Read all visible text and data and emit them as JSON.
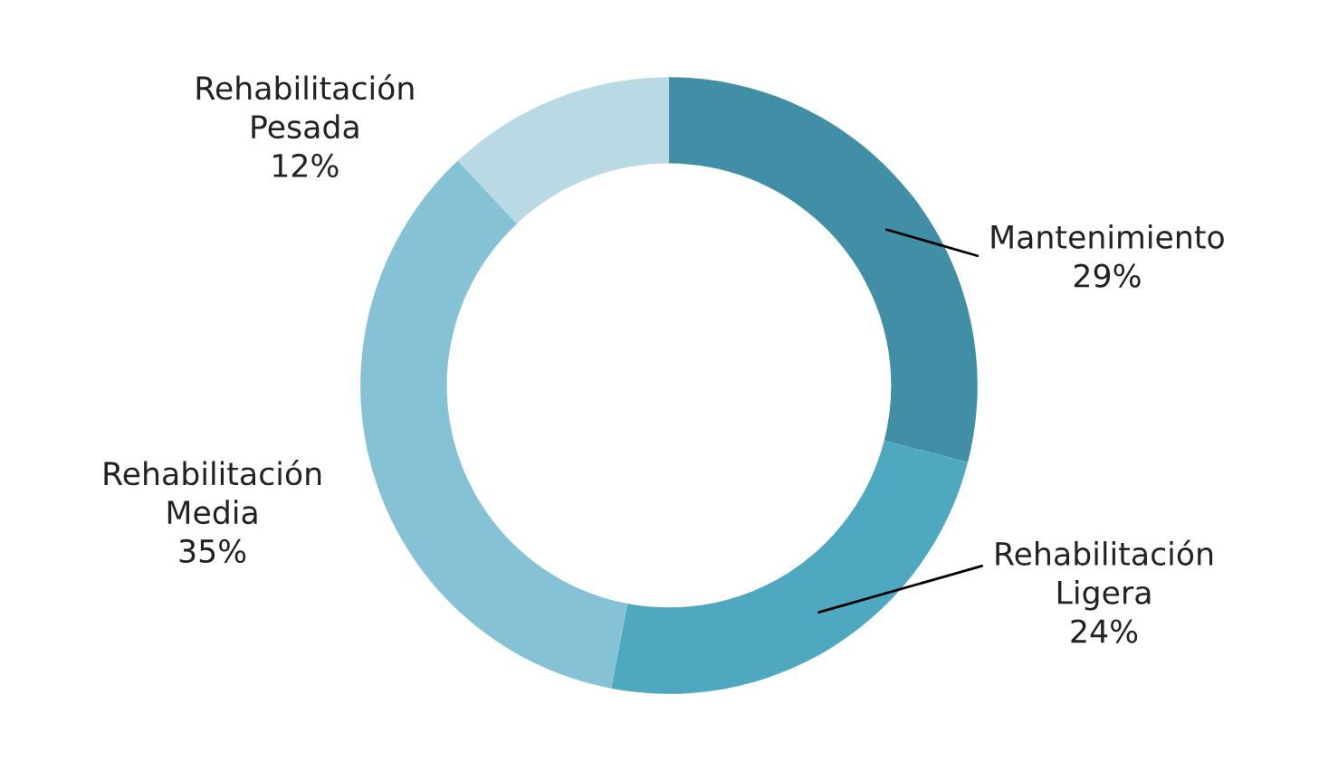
{
  "chart_data": {
    "type": "donut",
    "categories": [
      "Mantenimiento",
      "Rehabilitación Ligera",
      "Rehabilitación Media",
      "Rehabilitación Pesada"
    ],
    "values": [
      29,
      24,
      35,
      12
    ],
    "value_labels": [
      "29%",
      "24%",
      "35%",
      "12%"
    ],
    "colors": [
      "#418fa6",
      "#4ea8c0",
      "#86c2d5",
      "#b9d9e4"
    ],
    "legend": false
  }
}
